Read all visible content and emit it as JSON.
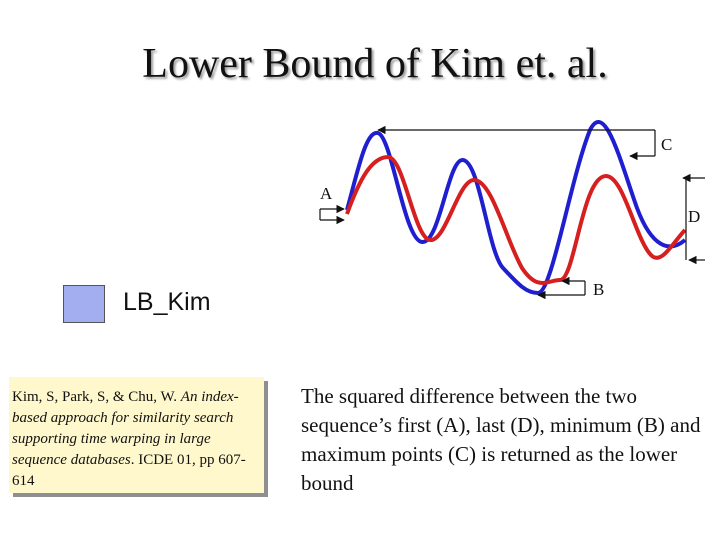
{
  "title": "Lower Bound of Kim et. al.",
  "legend": {
    "label": "LB_Kim",
    "color": "#a3aef0"
  },
  "points": {
    "a": "A",
    "b": "B",
    "c": "C",
    "d": "D"
  },
  "series_colors": {
    "blue": "#1f1fd0",
    "red": "#d61f1f"
  },
  "citation": {
    "authors": "Kim, S, Park, S, & Chu, W.",
    "title_italic": "An index-based approach for similarity search supporting time warping in large sequence databases",
    "venue": ". ICDE 01, pp 607-614"
  },
  "description": "The squared difference between the two sequence’s first (A), last (D), minimum (B) and maximum points (C) is returned as the lower bound"
}
